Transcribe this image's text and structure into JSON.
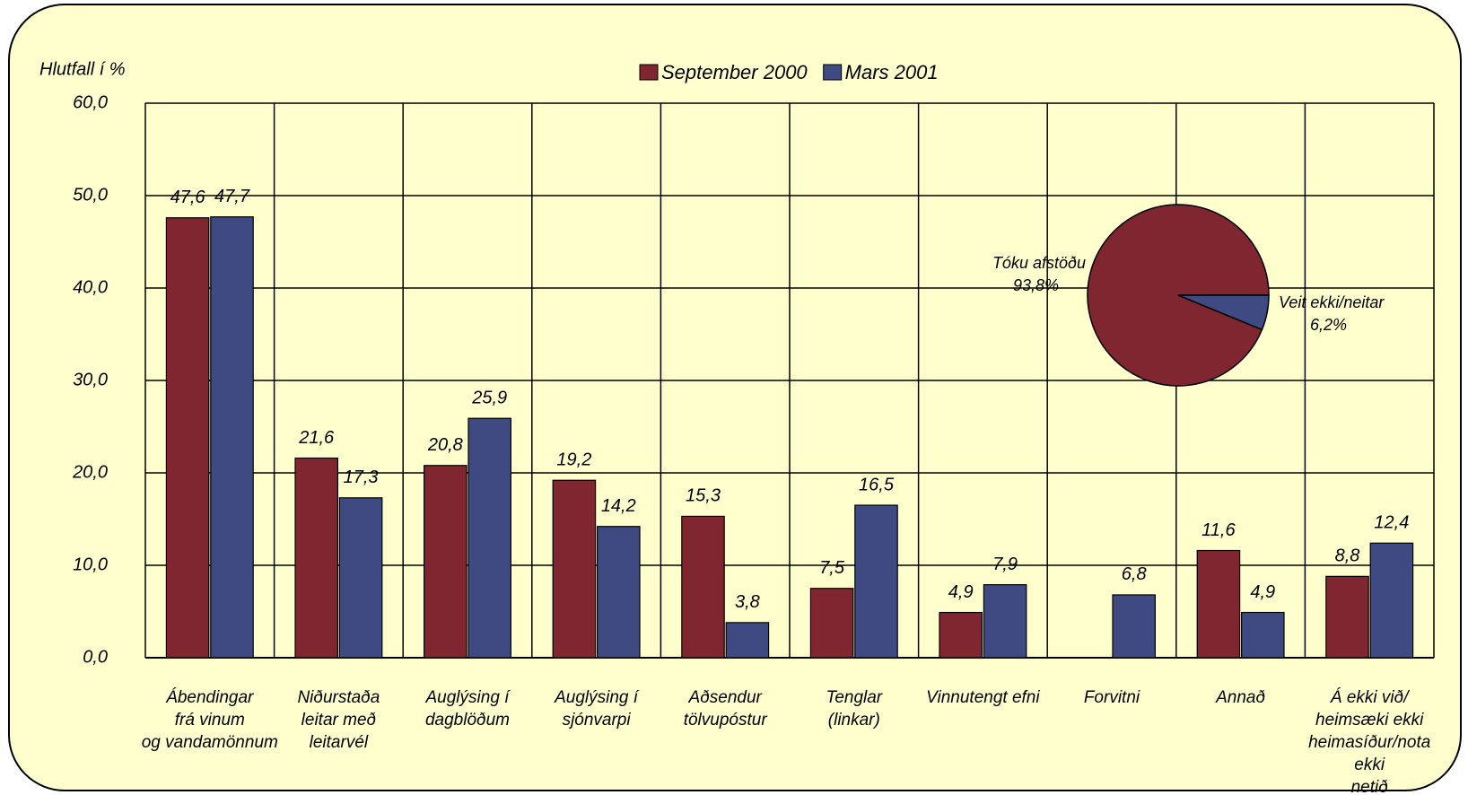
{
  "chart_data": [
    {
      "type": "bar",
      "y_axis_label": "Hlutfall í %",
      "categories": [
        "Ábendingar\nfrá vinum\nog vandamönnum",
        "Niðurstaða\nleitar með\nleitarvél",
        "Auglýsing í\ndagblöðum",
        "Auglýsing í\nsjónvarpi",
        "Aðsendur\ntölvupóstur",
        "Tenglar\n(linkar)",
        "Vinnutengt efni",
        "Forvitni",
        "Annað",
        "Á ekki við/\nheimsæki ekki\nheimasíður/nota ekki\nnetið"
      ],
      "series": [
        {
          "name": "September 2000",
          "color": "#7f2630",
          "values": [
            47.6,
            21.6,
            20.8,
            19.2,
            15.3,
            7.5,
            4.9,
            null,
            11.6,
            8.8
          ],
          "value_labels": [
            "47,6",
            "21,6",
            "20,8",
            "19,2",
            "15,3",
            "7,5",
            "4,9",
            null,
            "11,6",
            "8,8"
          ]
        },
        {
          "name": "Mars 2001",
          "color": "#3f4a82",
          "values": [
            47.7,
            17.3,
            25.9,
            14.2,
            3.8,
            16.5,
            7.9,
            6.8,
            4.9,
            12.4
          ],
          "value_labels": [
            "47,7",
            "17,3",
            "25,9",
            "14,2",
            "3,8",
            "16,5",
            "7,9",
            "6,8",
            "4,9",
            "12,4"
          ]
        }
      ],
      "ylim": [
        0,
        60
      ],
      "yticks": [
        {
          "value": 0,
          "label": "0,0"
        },
        {
          "value": 10,
          "label": "10,0"
        },
        {
          "value": 20,
          "label": "20,0"
        },
        {
          "value": 30,
          "label": "30,0"
        },
        {
          "value": 40,
          "label": "40,0"
        },
        {
          "value": 50,
          "label": "50,0"
        },
        {
          "value": 60,
          "label": "60,0"
        }
      ],
      "grid": true,
      "legend": "top"
    },
    {
      "type": "pie",
      "categories": [
        "Tóku afstöðu",
        "Veit ekki/neitar"
      ],
      "values": [
        93.8,
        6.2
      ],
      "value_labels": [
        "93,8%",
        "6,2%"
      ],
      "colors": [
        "#7f2630",
        "#3f4a82"
      ]
    }
  ]
}
